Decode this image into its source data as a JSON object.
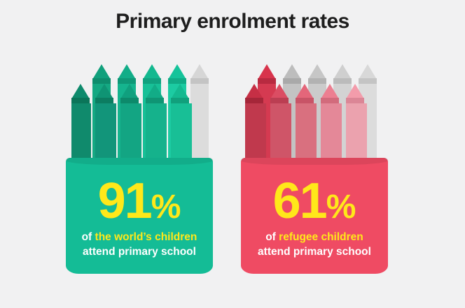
{
  "title": "Primary enrolment rates",
  "colors": {
    "background": "#f1f1f2",
    "green_sleeve": "#14bc96",
    "red_sleeve": "#ef4b63",
    "highlight": "#ffe81a"
  },
  "groups": [
    {
      "value": "91",
      "unit": "%",
      "caption_prefix": "of",
      "caption_highlight": "the world’s children",
      "caption_line2": "attend primary school"
    },
    {
      "value": "61",
      "unit": "%",
      "caption_prefix": "of",
      "caption_highlight": "refugee children",
      "caption_line2": "attend primary school"
    }
  ]
}
